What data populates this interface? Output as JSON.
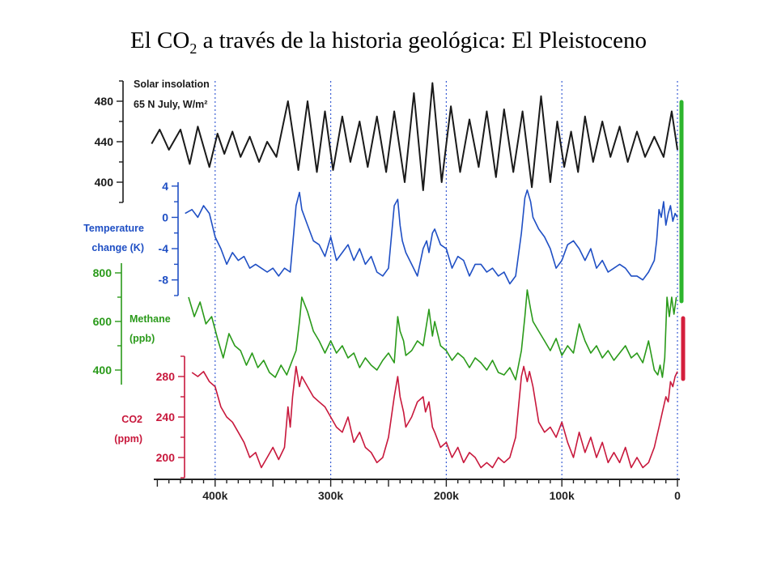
{
  "slide": {
    "title_prefix": "El CO",
    "title_sub": "2",
    "title_suffix": " a través de la historia geológica:  El Pleistoceno"
  },
  "chart_data": {
    "type": "line",
    "x_axis": {
      "label": "",
      "reversed": true,
      "range": [
        455,
        0
      ],
      "ticks": [
        400,
        300,
        200,
        100,
        0
      ],
      "tick_labels": [
        "400k",
        "300k",
        "200k",
        "100k",
        "0"
      ],
      "gridlines": "dotted vertical at 400k, 300k, 200k, 100k, 0"
    },
    "panels": [
      {
        "name": "insolation",
        "label_lines": [
          "Solar insolation",
          "65 N July, W/m²"
        ],
        "color": "#1a1a1a",
        "ylim": [
          380,
          500
        ],
        "ticks": [
          480,
          440,
          400
        ],
        "x": [
          455,
          448,
          440,
          430,
          422,
          415,
          405,
          398,
          392,
          385,
          378,
          370,
          362,
          355,
          347,
          337,
          328,
          320,
          312,
          305,
          298,
          290,
          283,
          275,
          268,
          260,
          252,
          245,
          236,
          228,
          220,
          212,
          204,
          196,
          188,
          180,
          172,
          165,
          157,
          150,
          142,
          134,
          126,
          118,
          110,
          104,
          98,
          92,
          86,
          80,
          73,
          65,
          58,
          50,
          43,
          35,
          28,
          20,
          12,
          5,
          0
        ],
        "values": [
          438,
          452,
          432,
          452,
          418,
          455,
          415,
          448,
          428,
          450,
          425,
          445,
          420,
          440,
          425,
          480,
          412,
          480,
          410,
          470,
          412,
          465,
          420,
          460,
          415,
          465,
          410,
          470,
          400,
          488,
          392,
          498,
          400,
          475,
          410,
          462,
          415,
          470,
          405,
          472,
          410,
          470,
          395,
          485,
          400,
          460,
          415,
          450,
          410,
          465,
          420,
          460,
          425,
          455,
          420,
          450,
          425,
          445,
          425,
          470,
          432
        ]
      },
      {
        "name": "temperature",
        "label_lines": [
          "Temperature",
          "change (K)"
        ],
        "color": "#1f4fc4",
        "ylim": [
          -10,
          4.5
        ],
        "ticks": [
          4,
          0,
          -4,
          -8
        ],
        "x": [
          426,
          420,
          415,
          410,
          405,
          400,
          395,
          390,
          385,
          380,
          375,
          370,
          365,
          360,
          355,
          350,
          345,
          340,
          335,
          332,
          330,
          327,
          325,
          320,
          315,
          310,
          305,
          300,
          295,
          290,
          285,
          280,
          275,
          270,
          265,
          260,
          255,
          250,
          245,
          242,
          240,
          238,
          235,
          230,
          225,
          220,
          217,
          215,
          212,
          210,
          205,
          200,
          195,
          190,
          185,
          180,
          175,
          170,
          165,
          160,
          155,
          150,
          145,
          140,
          135,
          132,
          130,
          127,
          125,
          120,
          115,
          110,
          105,
          100,
          95,
          90,
          85,
          80,
          75,
          70,
          65,
          60,
          55,
          50,
          45,
          40,
          35,
          30,
          25,
          20,
          18,
          16,
          14,
          12,
          10,
          8,
          6,
          4,
          2,
          0
        ],
        "values": [
          0.5,
          1.0,
          0.0,
          1.5,
          0.5,
          -2.5,
          -4.0,
          -6.0,
          -4.5,
          -5.5,
          -5.0,
          -6.5,
          -6.0,
          -6.5,
          -7.0,
          -6.5,
          -7.5,
          -6.5,
          -7.0,
          -2.0,
          1.5,
          3.2,
          1.0,
          -1.0,
          -3.0,
          -3.5,
          -5.0,
          -2.5,
          -5.5,
          -4.5,
          -3.5,
          -5.5,
          -4.0,
          -6.0,
          -5.0,
          -7.0,
          -7.5,
          -6.5,
          1.5,
          2.3,
          -1.0,
          -3.0,
          -4.5,
          -6.0,
          -7.5,
          -4.0,
          -3.0,
          -4.5,
          -2.0,
          -1.5,
          -3.5,
          -4.0,
          -6.5,
          -5.0,
          -5.5,
          -7.5,
          -6.0,
          -6.0,
          -7.0,
          -6.5,
          -7.5,
          -7.0,
          -8.5,
          -7.5,
          -2.0,
          2.5,
          3.5,
          2.0,
          0.0,
          -1.5,
          -2.5,
          -4.0,
          -6.5,
          -5.5,
          -3.5,
          -3.0,
          -4.0,
          -5.5,
          -4.0,
          -6.5,
          -5.5,
          -7.0,
          -6.5,
          -6.0,
          -6.5,
          -7.5,
          -7.5,
          -8.0,
          -7.0,
          -5.5,
          -3.0,
          1.0,
          0.0,
          2.0,
          -1.0,
          0.5,
          1.5,
          -0.5,
          0.5,
          0.0
        ]
      },
      {
        "name": "methane",
        "label_lines": [
          "Methane",
          "(ppb)"
        ],
        "color": "#2a9a1a",
        "ylim": [
          340,
          840
        ],
        "ticks": [
          800,
          600,
          400
        ],
        "x": [
          423,
          418,
          413,
          408,
          403,
          398,
          393,
          388,
          383,
          378,
          373,
          368,
          363,
          358,
          353,
          348,
          343,
          338,
          334,
          330,
          327,
          325,
          320,
          315,
          310,
          305,
          300,
          295,
          290,
          285,
          280,
          275,
          270,
          265,
          260,
          255,
          250,
          245,
          242,
          240,
          237,
          235,
          230,
          225,
          220,
          215,
          212,
          210,
          205,
          200,
          195,
          190,
          185,
          180,
          175,
          170,
          165,
          160,
          155,
          150,
          145,
          140,
          135,
          132,
          130,
          127,
          125,
          120,
          115,
          110,
          105,
          100,
          95,
          90,
          85,
          80,
          75,
          70,
          65,
          60,
          55,
          50,
          45,
          40,
          35,
          30,
          25,
          20,
          17,
          15,
          13,
          11,
          9,
          7,
          5,
          3,
          1
        ],
        "values": [
          700,
          620,
          680,
          590,
          620,
          530,
          450,
          550,
          500,
          480,
          420,
          470,
          410,
          440,
          390,
          370,
          420,
          380,
          430,
          480,
          600,
          700,
          640,
          560,
          520,
          470,
          520,
          470,
          500,
          450,
          470,
          410,
          450,
          420,
          400,
          440,
          470,
          430,
          620,
          560,
          520,
          460,
          480,
          520,
          500,
          650,
          540,
          600,
          500,
          480,
          440,
          470,
          450,
          410,
          450,
          430,
          400,
          440,
          390,
          380,
          410,
          360,
          480,
          620,
          730,
          650,
          600,
          560,
          520,
          480,
          530,
          460,
          500,
          470,
          590,
          520,
          470,
          500,
          450,
          480,
          440,
          470,
          500,
          450,
          470,
          430,
          520,
          400,
          380,
          420,
          370,
          450,
          700,
          620,
          700,
          630,
          700
        ]
      },
      {
        "name": "co2",
        "label_lines": [
          "CO2",
          "(ppm)"
        ],
        "color": "#c8183c",
        "ylim": [
          180,
          300
        ],
        "ticks": [
          280,
          240,
          200
        ],
        "x": [
          420,
          415,
          410,
          405,
          400,
          395,
          390,
          385,
          380,
          375,
          370,
          365,
          360,
          355,
          350,
          345,
          340,
          337,
          335,
          333,
          330,
          327,
          325,
          320,
          315,
          310,
          305,
          300,
          295,
          290,
          285,
          280,
          275,
          270,
          265,
          260,
          255,
          250,
          245,
          242,
          240,
          237,
          235,
          230,
          225,
          220,
          218,
          215,
          212,
          210,
          205,
          200,
          195,
          190,
          185,
          180,
          175,
          170,
          165,
          160,
          155,
          150,
          145,
          140,
          135,
          133,
          130,
          128,
          125,
          120,
          115,
          110,
          105,
          100,
          95,
          90,
          85,
          80,
          75,
          70,
          65,
          60,
          55,
          50,
          45,
          40,
          35,
          30,
          25,
          20,
          16,
          13,
          10,
          8,
          6,
          4,
          2,
          0
        ],
        "values": [
          284,
          280,
          285,
          275,
          270,
          250,
          240,
          235,
          225,
          215,
          200,
          205,
          190,
          200,
          210,
          198,
          210,
          250,
          230,
          260,
          290,
          270,
          280,
          270,
          260,
          255,
          250,
          240,
          230,
          225,
          240,
          215,
          225,
          210,
          205,
          195,
          200,
          220,
          260,
          280,
          260,
          245,
          230,
          240,
          255,
          260,
          245,
          255,
          230,
          225,
          210,
          215,
          200,
          210,
          195,
          205,
          200,
          190,
          195,
          190,
          200,
          195,
          200,
          220,
          280,
          290,
          275,
          285,
          270,
          235,
          225,
          230,
          220,
          235,
          215,
          200,
          225,
          205,
          220,
          200,
          215,
          195,
          205,
          195,
          210,
          190,
          200,
          190,
          195,
          210,
          230,
          245,
          260,
          255,
          275,
          270,
          280,
          285
        ]
      }
    ],
    "markers": [
      {
        "name": "green-bar",
        "color": "#2db52d",
        "span_panels": [
          "insolation",
          "temperature"
        ]
      },
      {
        "name": "red-bar",
        "color": "#d41e3c",
        "span_panels": [
          "methane"
        ]
      }
    ]
  }
}
